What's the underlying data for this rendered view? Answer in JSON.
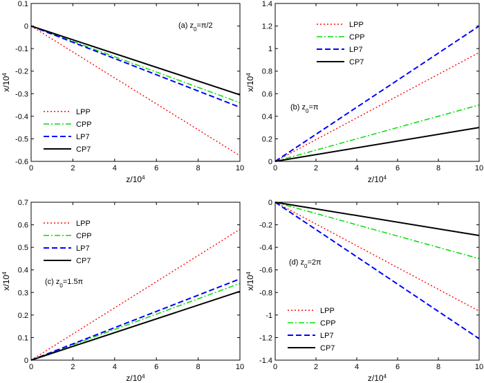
{
  "chart_data": [
    {
      "type": "line",
      "annotation": {
        "text": "(a) z",
        "sub": "0",
        "after": "=π/2"
      },
      "xlabel": {
        "text": "z/10",
        "sup": "4"
      },
      "ylabel": {
        "text": "x/10",
        "sup": "4"
      },
      "x": [
        0,
        10
      ],
      "xlim": [
        0,
        10
      ],
      "xticks": [
        0,
        2,
        4,
        6,
        8,
        10
      ],
      "ylim": [
        -0.6,
        0.1
      ],
      "yticks": [
        -0.6,
        -0.5,
        -0.4,
        -0.3,
        -0.2,
        -0.1,
        0,
        0.1
      ],
      "legend": "lower left",
      "series": [
        {
          "name": "LPP",
          "color": "#ff0000",
          "dash": "dotted",
          "values": [
            0,
            -0.575
          ]
        },
        {
          "name": "CPP",
          "color": "#00dd00",
          "dash": "dashdot",
          "values": [
            0,
            -0.34
          ]
        },
        {
          "name": "LP7",
          "color": "#0000ff",
          "dash": "dashed",
          "values": [
            0,
            -0.36
          ]
        },
        {
          "name": "CP7",
          "color": "#000000",
          "dash": "solid",
          "values": [
            0,
            -0.305
          ]
        }
      ]
    },
    {
      "type": "line",
      "annotation": {
        "text": "(b) z",
        "sub": "0",
        "after": "=π"
      },
      "xlabel": {
        "text": "z/10",
        "sup": "4"
      },
      "ylabel": {
        "text": "x/10",
        "sup": "4"
      },
      "x": [
        0,
        10
      ],
      "xlim": [
        0,
        10
      ],
      "xticks": [
        0,
        2,
        4,
        6,
        8,
        10
      ],
      "ylim": [
        0,
        1.4
      ],
      "yticks": [
        0,
        0.2,
        0.4,
        0.6,
        0.8,
        1,
        1.2,
        1.4
      ],
      "legend": "upper center",
      "series": [
        {
          "name": "LPP",
          "color": "#ff0000",
          "dash": "dotted",
          "values": [
            0,
            0.965
          ]
        },
        {
          "name": "CPP",
          "color": "#00dd00",
          "dash": "dashdot",
          "values": [
            0,
            0.5
          ]
        },
        {
          "name": "LP7",
          "color": "#0000ff",
          "dash": "dashed",
          "values": [
            0,
            1.2
          ]
        },
        {
          "name": "CP7",
          "color": "#000000",
          "dash": "solid",
          "values": [
            0,
            0.3
          ]
        }
      ]
    },
    {
      "type": "line",
      "annotation": {
        "text": "(c) z",
        "sub": "0",
        "after": "=1.5π"
      },
      "xlabel": {
        "text": "z/10",
        "sup": "4"
      },
      "ylabel": {
        "text": "x/10",
        "sup": "4"
      },
      "x": [
        0,
        10
      ],
      "xlim": [
        0,
        10
      ],
      "xticks": [
        0,
        2,
        4,
        6,
        8,
        10
      ],
      "ylim": [
        0,
        0.7
      ],
      "yticks": [
        0,
        0.1,
        0.2,
        0.3,
        0.4,
        0.5,
        0.6,
        0.7
      ],
      "legend": "upper left",
      "series": [
        {
          "name": "LPP",
          "color": "#ff0000",
          "dash": "dotted",
          "values": [
            0,
            0.58
          ]
        },
        {
          "name": "CPP",
          "color": "#00dd00",
          "dash": "dashdot",
          "values": [
            0,
            0.34
          ]
        },
        {
          "name": "LP7",
          "color": "#0000ff",
          "dash": "dashed",
          "values": [
            0,
            0.36
          ]
        },
        {
          "name": "CP7",
          "color": "#000000",
          "dash": "solid",
          "values": [
            0,
            0.305
          ]
        }
      ]
    },
    {
      "type": "line",
      "annotation": {
        "text": "(d) z",
        "sub": "0",
        "after": "=2π"
      },
      "xlabel": {
        "text": "z/10",
        "sup": "4"
      },
      "ylabel": {
        "text": "x/10",
        "sup": "4"
      },
      "x": [
        0,
        10
      ],
      "xlim": [
        0,
        10
      ],
      "xticks": [
        0,
        2,
        4,
        6,
        8,
        10
      ],
      "ylim": [
        -1.4,
        0
      ],
      "yticks": [
        -1.4,
        -1.2,
        -1,
        -0.8,
        -0.6,
        -0.4,
        -0.2,
        0
      ],
      "legend": "lower left",
      "series": [
        {
          "name": "LPP",
          "color": "#ff0000",
          "dash": "dotted",
          "values": [
            0,
            -0.965
          ]
        },
        {
          "name": "CPP",
          "color": "#00dd00",
          "dash": "dashdot",
          "values": [
            0,
            -0.5
          ]
        },
        {
          "name": "LP7",
          "color": "#0000ff",
          "dash": "dashed",
          "values": [
            0,
            -1.21
          ]
        },
        {
          "name": "CP7",
          "color": "#000000",
          "dash": "solid",
          "values": [
            0,
            -0.295
          ]
        }
      ]
    }
  ]
}
